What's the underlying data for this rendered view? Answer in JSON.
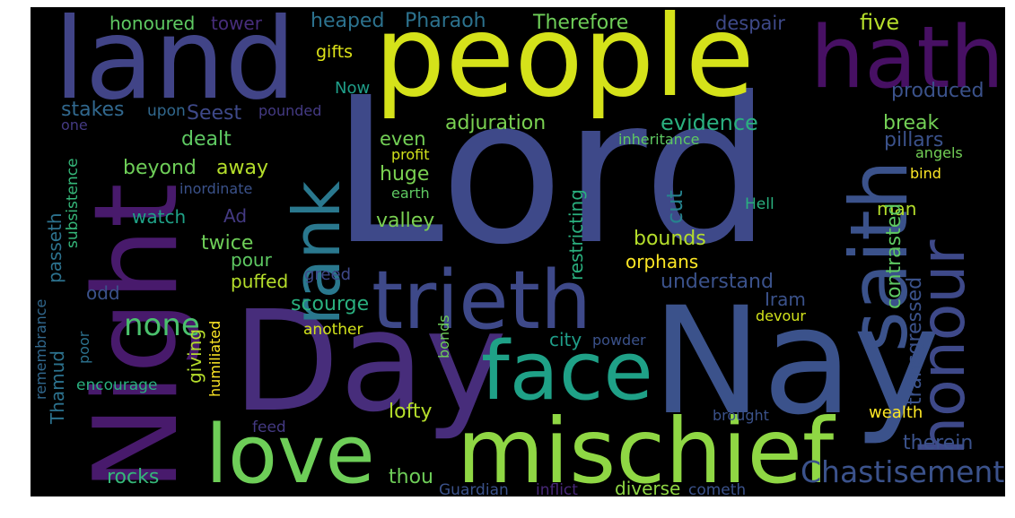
{
  "background": "#000000",
  "palette": [
    "#440154",
    "#482878",
    "#3e4989",
    "#31688e",
    "#26828e",
    "#1f9e89",
    "#35b779",
    "#6ece58",
    "#b5de2b",
    "#fde725"
  ],
  "words": [
    {
      "text": "Lord",
      "color": "#3e4989"
    },
    {
      "text": "people",
      "color": "#d5e21a"
    },
    {
      "text": "land",
      "color": "#414487"
    },
    {
      "text": "Day",
      "color": "#472d7b"
    },
    {
      "text": "Nay",
      "color": "#3b528b"
    },
    {
      "text": "Night",
      "color": "#481a6c"
    },
    {
      "text": "hath",
      "color": "#471063"
    },
    {
      "text": "mischief",
      "color": "#8fd744"
    },
    {
      "text": "trieth",
      "color": "#3e4989"
    },
    {
      "text": "love",
      "color": "#6ece58"
    },
    {
      "text": "face",
      "color": "#1fa187"
    },
    {
      "text": "rank",
      "color": "#2a788e"
    },
    {
      "text": "saith",
      "color": "#3b528b"
    },
    {
      "text": "honour",
      "color": "#3e4989"
    },
    {
      "text": "Chastisement",
      "color": "#3b528b"
    },
    {
      "text": "heaped",
      "color": "#2c728e"
    },
    {
      "text": "Pharaoh",
      "color": "#2c728e"
    },
    {
      "text": "Therefore",
      "color": "#6ece58"
    },
    {
      "text": "five",
      "color": "#b5de2b"
    },
    {
      "text": "despair",
      "color": "#3e4989"
    },
    {
      "text": "honoured",
      "color": "#5ec962"
    },
    {
      "text": "tower",
      "color": "#472d7b"
    },
    {
      "text": "gifts",
      "color": "#dde318"
    },
    {
      "text": "Now",
      "color": "#1f9e89"
    },
    {
      "text": "produced",
      "color": "#3b528b"
    },
    {
      "text": "stakes",
      "color": "#31688e"
    },
    {
      "text": "upon",
      "color": "#31688e"
    },
    {
      "text": "pounded",
      "color": "#443a83"
    },
    {
      "text": "one",
      "color": "#443a83"
    },
    {
      "text": "Seest",
      "color": "#3e4989"
    },
    {
      "text": "adjuration",
      "color": "#7ad151"
    },
    {
      "text": "evidence",
      "color": "#2ab07f"
    },
    {
      "text": "break",
      "color": "#73d056"
    },
    {
      "text": "pillars",
      "color": "#3b528b"
    },
    {
      "text": "dealt",
      "color": "#5ec962"
    },
    {
      "text": "even",
      "color": "#73d056"
    },
    {
      "text": "inheritance",
      "color": "#5ec962"
    },
    {
      "text": "angels",
      "color": "#73d056"
    },
    {
      "text": "subsistence",
      "color": "#35b779"
    },
    {
      "text": "profit",
      "color": "#d2e21b"
    },
    {
      "text": "beyond",
      "color": "#6ece58"
    },
    {
      "text": "away",
      "color": "#b5de2b"
    },
    {
      "text": "huge",
      "color": "#7ad151"
    },
    {
      "text": "inordinate",
      "color": "#3b528b"
    },
    {
      "text": "earth",
      "color": "#5ec962"
    },
    {
      "text": "bind",
      "color": "#fde725"
    },
    {
      "text": "watch",
      "color": "#1fa187"
    },
    {
      "text": "Ad",
      "color": "#443a83"
    },
    {
      "text": "valley",
      "color": "#7ad151"
    },
    {
      "text": "cut",
      "color": "#26828e"
    },
    {
      "text": "Hell",
      "color": "#2ab07f"
    },
    {
      "text": "man",
      "color": "#b5de2b"
    },
    {
      "text": "passeth",
      "color": "#2c728e"
    },
    {
      "text": "twice",
      "color": "#6ece58"
    },
    {
      "text": "bounds",
      "color": "#b5de2b"
    },
    {
      "text": "restricting",
      "color": "#2ab07f"
    },
    {
      "text": "orphans",
      "color": "#fde725"
    },
    {
      "text": "contrasted",
      "color": "#5ec962"
    },
    {
      "text": "pour",
      "color": "#5ec962"
    },
    {
      "text": "transgressed",
      "color": "#3b528b"
    },
    {
      "text": "greed",
      "color": "#3e4989"
    },
    {
      "text": "puffed",
      "color": "#b5de2b"
    },
    {
      "text": "understand",
      "color": "#3b528b"
    },
    {
      "text": "odd",
      "color": "#3b528b"
    },
    {
      "text": "Iram",
      "color": "#3b528b"
    },
    {
      "text": "scourge",
      "color": "#2ab07f"
    },
    {
      "text": "none",
      "color": "#4ac16d"
    },
    {
      "text": "remembrance",
      "color": "#31688e"
    },
    {
      "text": "poor",
      "color": "#2c728e"
    },
    {
      "text": "humiliated",
      "color": "#fde725"
    },
    {
      "text": "another",
      "color": "#d2e21b"
    },
    {
      "text": "devour",
      "color": "#d2e21b"
    },
    {
      "text": "city",
      "color": "#1f9e89"
    },
    {
      "text": "powder",
      "color": "#3b528b"
    },
    {
      "text": "bonds",
      "color": "#6ece58"
    },
    {
      "text": "giving",
      "color": "#b5de2b"
    },
    {
      "text": "Thamud",
      "color": "#2c728e"
    },
    {
      "text": "encourage",
      "color": "#2ab07f"
    },
    {
      "text": "lofty",
      "color": "#b5de2b"
    },
    {
      "text": "wealth",
      "color": "#fde725"
    },
    {
      "text": "feed",
      "color": "#443a83"
    },
    {
      "text": "brought",
      "color": "#3b528b"
    },
    {
      "text": "therein",
      "color": "#3b528b"
    },
    {
      "text": "thou",
      "color": "#6ece58"
    },
    {
      "text": "rocks",
      "color": "#35b779"
    },
    {
      "text": "Guardian",
      "color": "#3b528b"
    },
    {
      "text": "inflict",
      "color": "#482878"
    },
    {
      "text": "diverse",
      "color": "#8fd744"
    },
    {
      "text": "cometh",
      "color": "#3b528b"
    }
  ]
}
